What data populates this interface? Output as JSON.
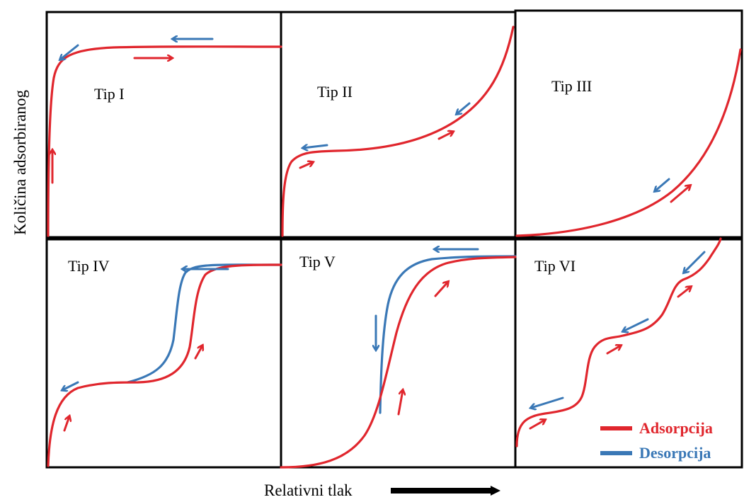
{
  "figure": {
    "y_axis_label": "Količina adsorbiranog",
    "x_axis_label": "Relativni tlak",
    "panels": [
      {
        "label": "Tip I"
      },
      {
        "label": "Tip II"
      },
      {
        "label": "Tip III"
      },
      {
        "label": "Tip IV"
      },
      {
        "label": "Tip V"
      },
      {
        "label": "Tip VI"
      }
    ],
    "legend": [
      {
        "label": "Adsorpcija",
        "color": "#e0262d"
      },
      {
        "label": "Desorpcija",
        "color": "#3a78b6"
      }
    ]
  }
}
